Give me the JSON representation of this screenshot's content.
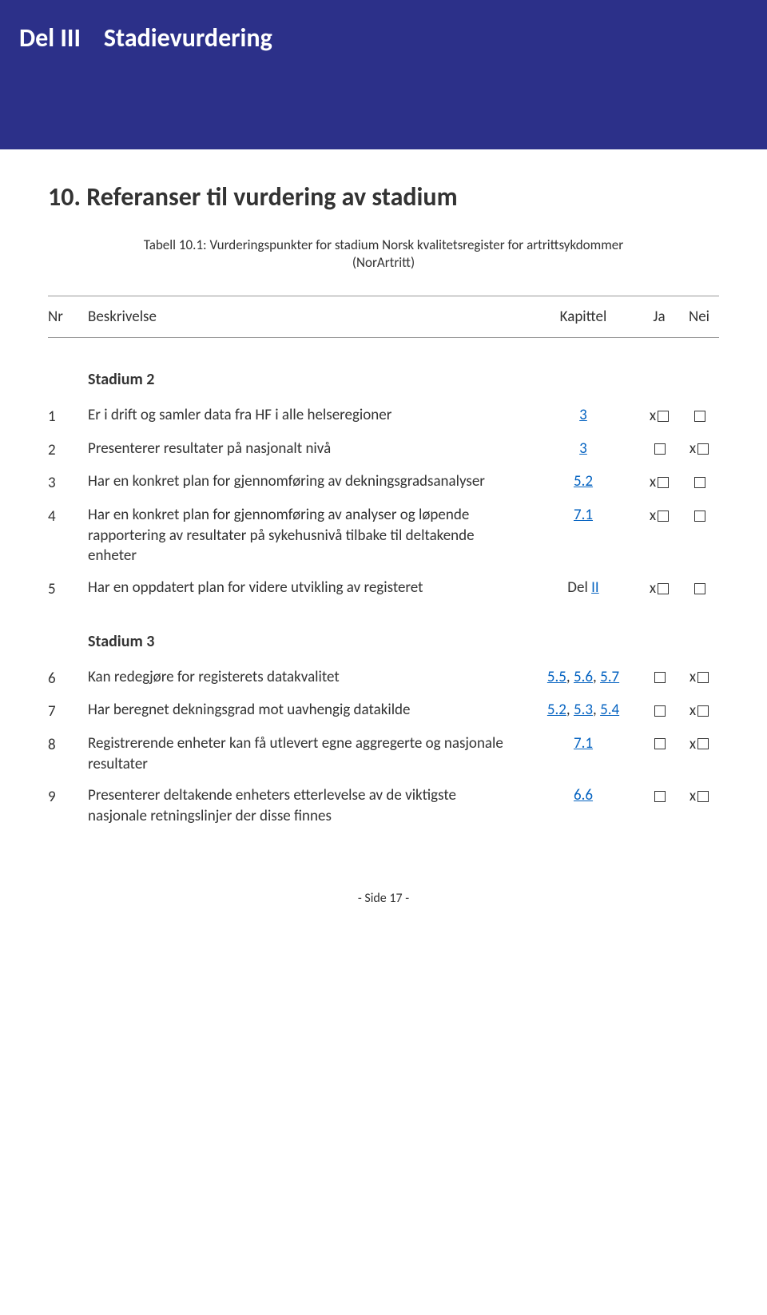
{
  "header": {
    "part": "Del III",
    "title": "Stadievurdering"
  },
  "section": {
    "title": "10. Referanser til vurdering av stadium"
  },
  "table_caption": {
    "line1": "Tabell 10.1: Vurderingspunkter for stadium Norsk kvalitetsregister for artrittsykdommer",
    "line2": "(NorArtritt)"
  },
  "column_headers": {
    "nr": "Nr",
    "desc": "Beskrivelse",
    "chap": "Kapittel",
    "ja": "Ja",
    "nei": "Nei"
  },
  "stadium2": {
    "title": "Stadium 2",
    "rows": [
      {
        "nr": "1",
        "desc": "Er i drift og samler data fra HF i alle helseregioner",
        "chap": "3",
        "ja": "x",
        "nei": ""
      },
      {
        "nr": "2",
        "desc": "Presenterer resultater på nasjonalt nivå",
        "chap": "3",
        "ja": "",
        "nei": "x"
      },
      {
        "nr": "3",
        "desc": "Har en konkret plan for gjennomføring av dekningsgradsanalyser",
        "chap": "5.2",
        "ja": "x",
        "nei": ""
      },
      {
        "nr": "4",
        "desc": "Har en konkret plan for gjennomføring av analyser og løpende rapportering av resultater på sykehusnivå tilbake til deltakende enheter",
        "chap": "7.1",
        "ja": "x",
        "nei": ""
      },
      {
        "nr": "5",
        "desc": "Har en oppdatert plan for videre utvikling av registeret",
        "chap_prefix": "Del ",
        "chap": "II",
        "ja": "x",
        "nei": ""
      }
    ]
  },
  "stadium3": {
    "title": "Stadium 3",
    "rows": [
      {
        "nr": "6",
        "desc": "Kan redegjøre for registerets datakvalitet",
        "chap_list": [
          "5.5",
          "5.6",
          "5.7"
        ],
        "ja": "",
        "nei": "x"
      },
      {
        "nr": "7",
        "desc": "Har beregnet dekningsgrad mot uavhengig datakilde",
        "chap_list": [
          "5.2",
          "5.3",
          "5.4"
        ],
        "ja": "",
        "nei": "x"
      },
      {
        "nr": "8",
        "desc": "Registrerende enheter kan få utlevert egne aggregerte og nasjonale resultater",
        "chap": "7.1",
        "ja": "",
        "nei": "x"
      },
      {
        "nr": "9",
        "desc": "Presenterer deltakende enheters etterlevelse av de viktigste nasjonale retningslinjer der disse finnes",
        "chap": "6.6",
        "ja": "",
        "nei": "x"
      }
    ]
  },
  "page_number": "- Side 17 -",
  "colors": {
    "header_bg": "#2c3089",
    "link": "#0563c1",
    "text": "#333333",
    "border": "#999999"
  }
}
